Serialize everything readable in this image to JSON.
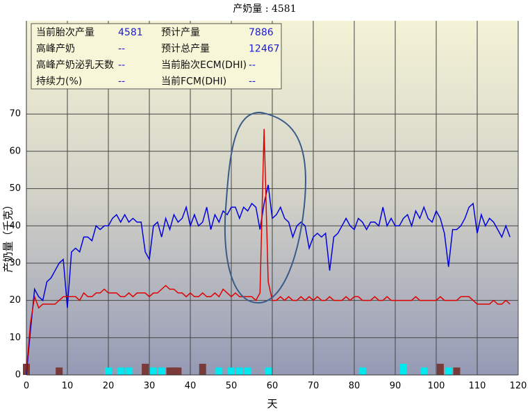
{
  "chart_data": {
    "type": "line",
    "title": "产奶量 : 4581",
    "x_label": "天",
    "y_label": "产奶量（千克）",
    "xlim": [
      0,
      120
    ],
    "ylim": [
      0,
      95
    ],
    "xticks": [
      0,
      10,
      20,
      30,
      40,
      50,
      60,
      70,
      80,
      90,
      100,
      110,
      120
    ],
    "yticks": [
      0,
      10,
      20,
      30,
      40,
      50,
      60,
      70
    ],
    "grid": true,
    "x": [
      0,
      1,
      2,
      3,
      4,
      5,
      6,
      7,
      8,
      9,
      10,
      11,
      12,
      13,
      14,
      15,
      16,
      17,
      18,
      19,
      20,
      21,
      22,
      23,
      24,
      25,
      26,
      27,
      28,
      29,
      30,
      31,
      32,
      33,
      34,
      35,
      36,
      37,
      38,
      39,
      40,
      41,
      42,
      43,
      44,
      45,
      46,
      47,
      48,
      49,
      50,
      51,
      52,
      53,
      54,
      55,
      56,
      57,
      58,
      59,
      60,
      61,
      62,
      63,
      64,
      65,
      66,
      67,
      68,
      69,
      70,
      71,
      72,
      73,
      74,
      75,
      76,
      77,
      78,
      79,
      80,
      81,
      82,
      83,
      84,
      85,
      86,
      87,
      88,
      89,
      90,
      91,
      92,
      93,
      94,
      95,
      96,
      97,
      98,
      99,
      100,
      101,
      102,
      103,
      104,
      105,
      106,
      107,
      108,
      109,
      110,
      111,
      112,
      113,
      114,
      115,
      116,
      117,
      118
    ],
    "series": [
      {
        "color": "#0000e0",
        "values": [
          0,
          12,
          23,
          21,
          20,
          25,
          26,
          28,
          30,
          31,
          18,
          33,
          34,
          33,
          37,
          37,
          36,
          40,
          39,
          40,
          40,
          42,
          43,
          41,
          43,
          41,
          42,
          41,
          41,
          33,
          31,
          40,
          41,
          37,
          42,
          39,
          43,
          41,
          42,
          45,
          40,
          43,
          40,
          41,
          45,
          39,
          43,
          41,
          44,
          43,
          45,
          45,
          42,
          45,
          44,
          46,
          45,
          39,
          46,
          51,
          42,
          43,
          45,
          42,
          41,
          37,
          40,
          41,
          40,
          34,
          37,
          38,
          37,
          38,
          28,
          37,
          38,
          40,
          42,
          40,
          39,
          42,
          41,
          39,
          41,
          41,
          40,
          45,
          40,
          42,
          40,
          40,
          42,
          43,
          40,
          44,
          42,
          45,
          42,
          41,
          44,
          42,
          38,
          29,
          39,
          39,
          40,
          42,
          45,
          46,
          38,
          43,
          40,
          42,
          41,
          39,
          37,
          40,
          37
        ]
      },
      {
        "color": "#e00000",
        "values": [
          1,
          14,
          21,
          18,
          19,
          19,
          19,
          19,
          20,
          21,
          21,
          21,
          21,
          20,
          22,
          21,
          21,
          22,
          22,
          23,
          22,
          22,
          22,
          21,
          21,
          22,
          21,
          22,
          22,
          22,
          21,
          22,
          22,
          23,
          24,
          23,
          23,
          22,
          22,
          21,
          22,
          21,
          21,
          22,
          21,
          21,
          22,
          21,
          23,
          22,
          21,
          22,
          21,
          21,
          21,
          21,
          20,
          22,
          66,
          25,
          20,
          20,
          21,
          20,
          21,
          20,
          20,
          21,
          20,
          21,
          20,
          21,
          20,
          20,
          21,
          20,
          20,
          20,
          21,
          20,
          21,
          21,
          20,
          20,
          20,
          21,
          20,
          20,
          21,
          20,
          20,
          20,
          20,
          20,
          20,
          21,
          20,
          20,
          20,
          20,
          20,
          21,
          20,
          20,
          20,
          20,
          21,
          21,
          21,
          20,
          19,
          19,
          19,
          19,
          20,
          19,
          19,
          20,
          19
        ]
      }
    ],
    "markers": [
      {
        "color": "#00e8f0",
        "x": [
          20,
          23,
          25,
          31,
          33,
          43,
          47,
          50,
          52,
          54,
          59,
          82,
          92,
          97,
          103
        ],
        "values": [
          2,
          2,
          2,
          2,
          2,
          2,
          2,
          2,
          2,
          2,
          2,
          2,
          3,
          2,
          2
        ]
      },
      {
        "color": "#7a3a3a",
        "x": [
          0,
          8,
          29,
          35,
          36,
          37,
          43,
          101,
          105
        ],
        "values": [
          3,
          2,
          3,
          2,
          2,
          2,
          3,
          3,
          2
        ]
      }
    ],
    "info_box": {
      "rows": [
        [
          "当前胎次产量",
          "4581",
          "预计产量",
          "7886"
        ],
        [
          "高峰产奶",
          "--",
          "预计总产量",
          "12467"
        ],
        [
          "高峰产奶泌乳天数",
          "--",
          "当前胎次ECM(DHI)",
          "--"
        ],
        [
          "持续力(%)",
          "--",
          "当前FCM(DHI)",
          "--"
        ]
      ]
    }
  }
}
